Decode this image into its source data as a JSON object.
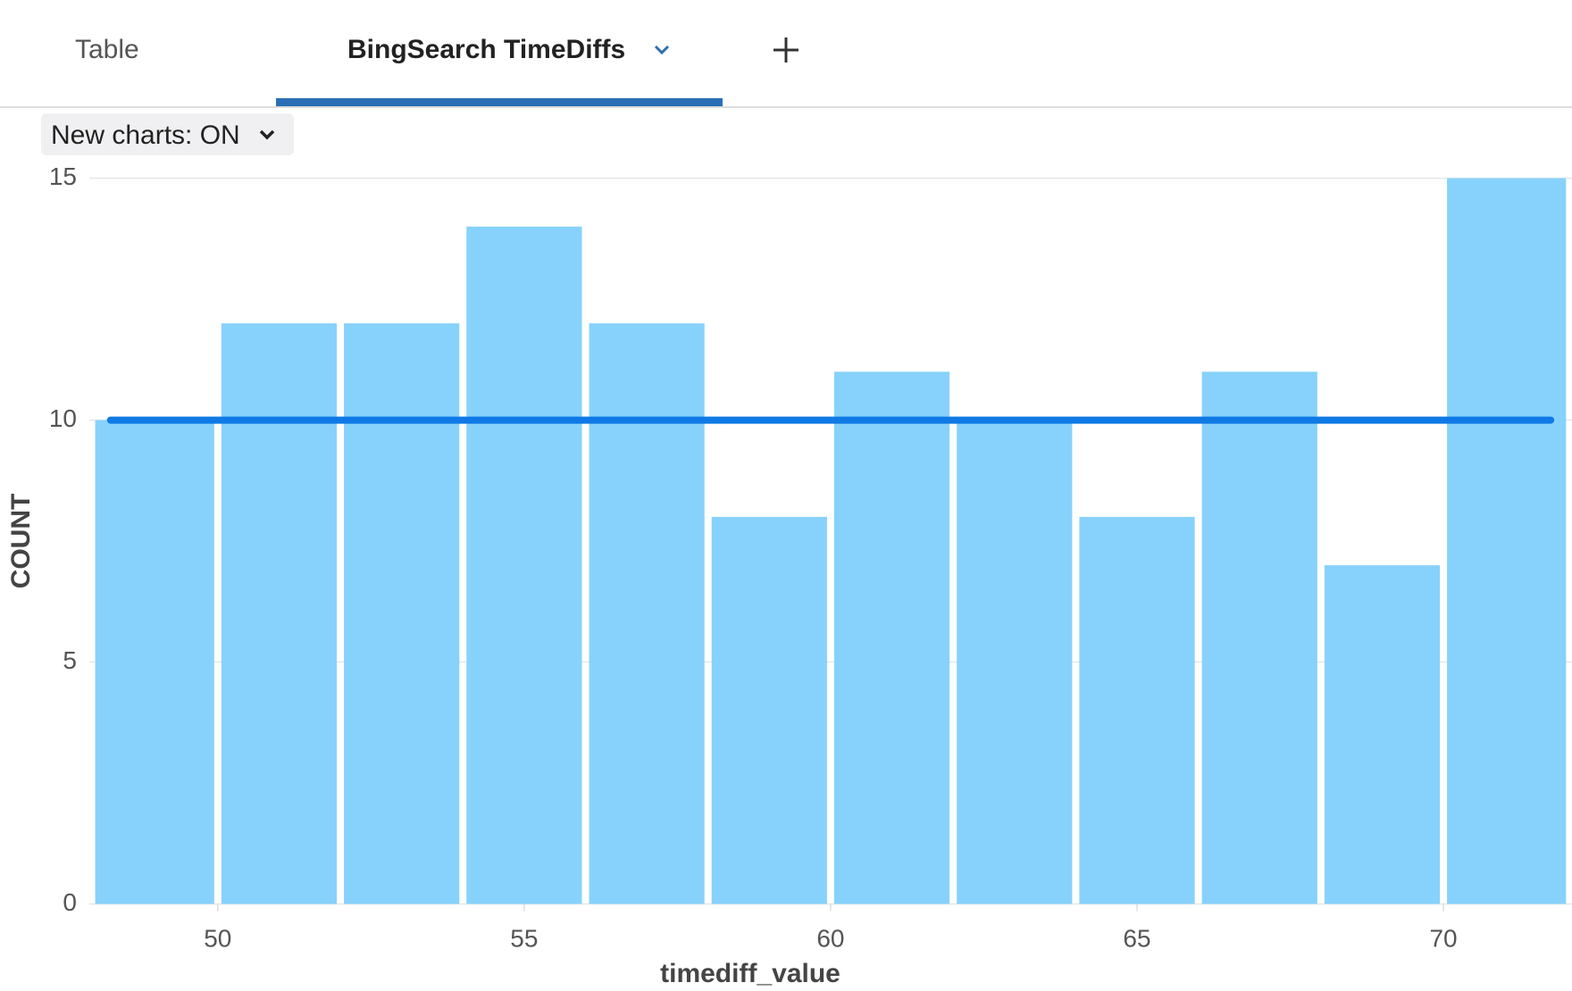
{
  "tabs": [
    "Table",
    "BingSearch TimeDiffs"
  ],
  "toggle": "New charts: ON",
  "chart_data": {
    "type": "histogram",
    "bins": [
      48,
      50,
      52,
      54,
      56,
      58,
      60,
      62,
      64,
      66,
      68,
      70,
      72
    ],
    "values": [
      10,
      12,
      12,
      14,
      12,
      8,
      11,
      10,
      8,
      11,
      7,
      15
    ],
    "color": "#86d2fc",
    "line": {
      "x": [
        48.25,
        71.75
      ],
      "values": [
        10,
        10
      ],
      "color": "#0f7ae5"
    },
    "xlabel": "timediff_value",
    "ylabel": "COUNT",
    "xlim": [
      48,
      72
    ],
    "ylim": [
      0,
      15
    ],
    "xticks": [
      50,
      55,
      60,
      65,
      70
    ],
    "yticks": [
      0,
      5,
      10,
      15
    ],
    "grid": true
  }
}
